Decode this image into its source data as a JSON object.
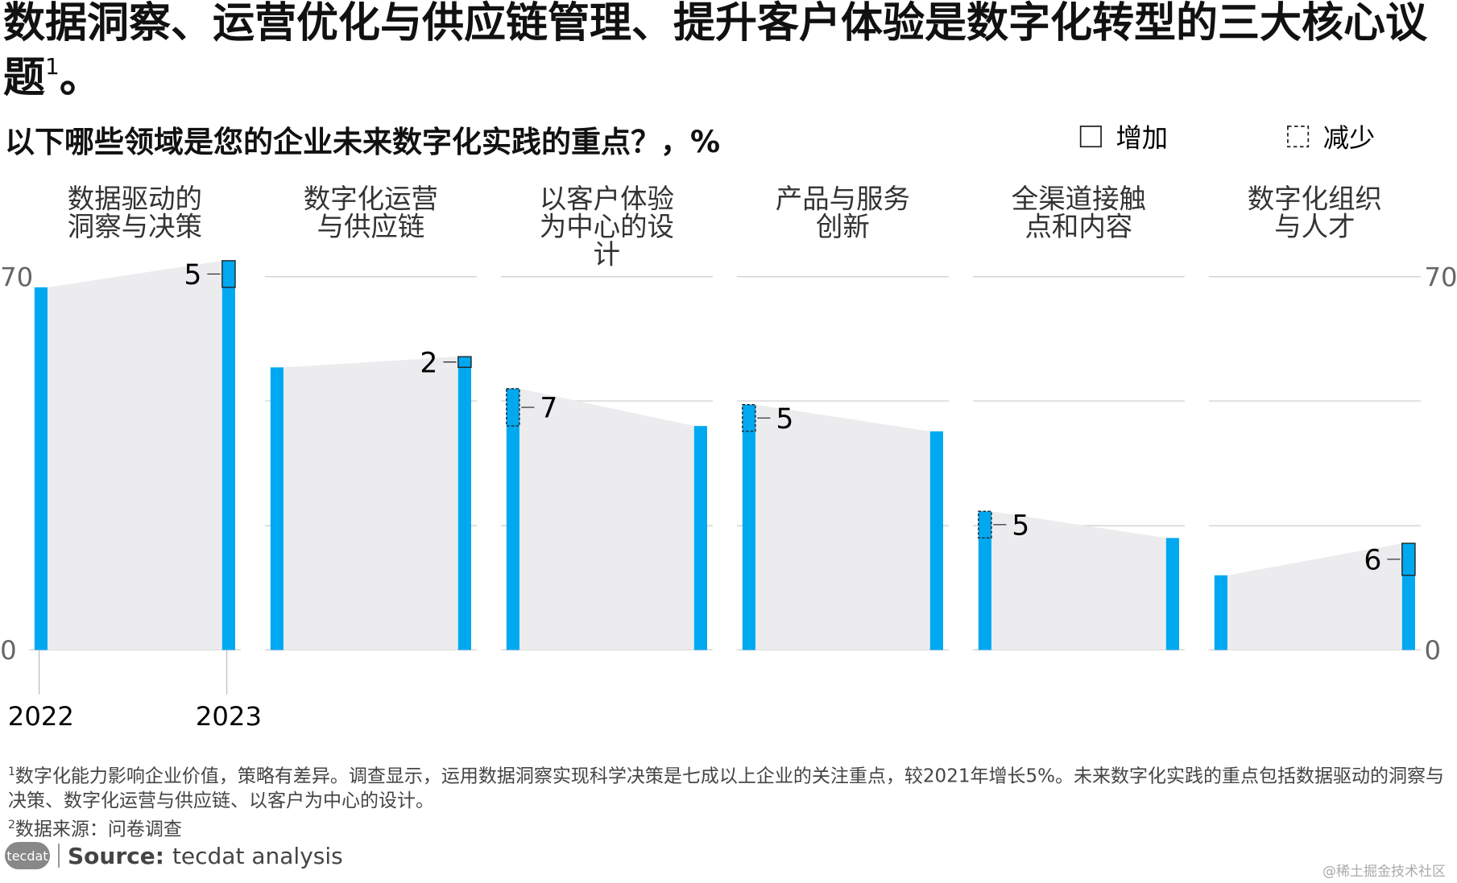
{
  "chart_data": {
    "type": "bar",
    "title": "数据洞察、运营优化与供应链管理、提升客户体验是数字化转型的三大核心议题",
    "title_note_mark": "1",
    "title_end": "。",
    "subtitle": "以下哪些领域是您的企业未来数字化实践的重点？，%",
    "legend": [
      {
        "label": "增加",
        "style": "solid"
      },
      {
        "label": "减少",
        "style": "dashed"
      }
    ],
    "categories": [
      "2022",
      "2023"
    ],
    "color": "#00a8f0",
    "ylim": [
      0,
      70
    ],
    "yticks": [
      0,
      70
    ],
    "minor_gridlines": [
      23.3,
      46.7
    ],
    "groups": [
      {
        "name": "数据驱动的洞察与决策",
        "values": [
          68,
          73
        ],
        "change": 5,
        "change_direction": "increase"
      },
      {
        "name": "数字化运营与供应链",
        "values": [
          53,
          55
        ],
        "change": 2,
        "change_direction": "increase"
      },
      {
        "name": "以客户体验为中心的设计",
        "values": [
          49,
          42
        ],
        "change": 7,
        "change_direction": "decrease"
      },
      {
        "name": "产品与服务创新",
        "values": [
          46,
          41
        ],
        "change": 5,
        "change_direction": "decrease"
      },
      {
        "name": "全渠道接触点和内容",
        "values": [
          26,
          21
        ],
        "change": 5,
        "change_direction": "decrease"
      },
      {
        "name": "数字化组织与人才",
        "values": [
          14,
          20
        ],
        "change": 6,
        "change_direction": "increase"
      }
    ]
  },
  "footnotes": [
    {
      "mark": "1",
      "text": "数字化能力影响企业价值，策略有差异。调查显示，运用数据洞察实现科学决策是七成以上企业的关注重点，较2021年增长5%。未来数字化实践的重点包括数据驱动的洞察与决策、数字化运营与供应链、以客户为中心的设计。"
    },
    {
      "mark": "2",
      "text": "数据来源：问卷调查"
    }
  ],
  "source": {
    "logo": "tecdat",
    "label": "Source:",
    "text": "tecdat analysis"
  },
  "watermark": "@稀土掘金技术社区"
}
